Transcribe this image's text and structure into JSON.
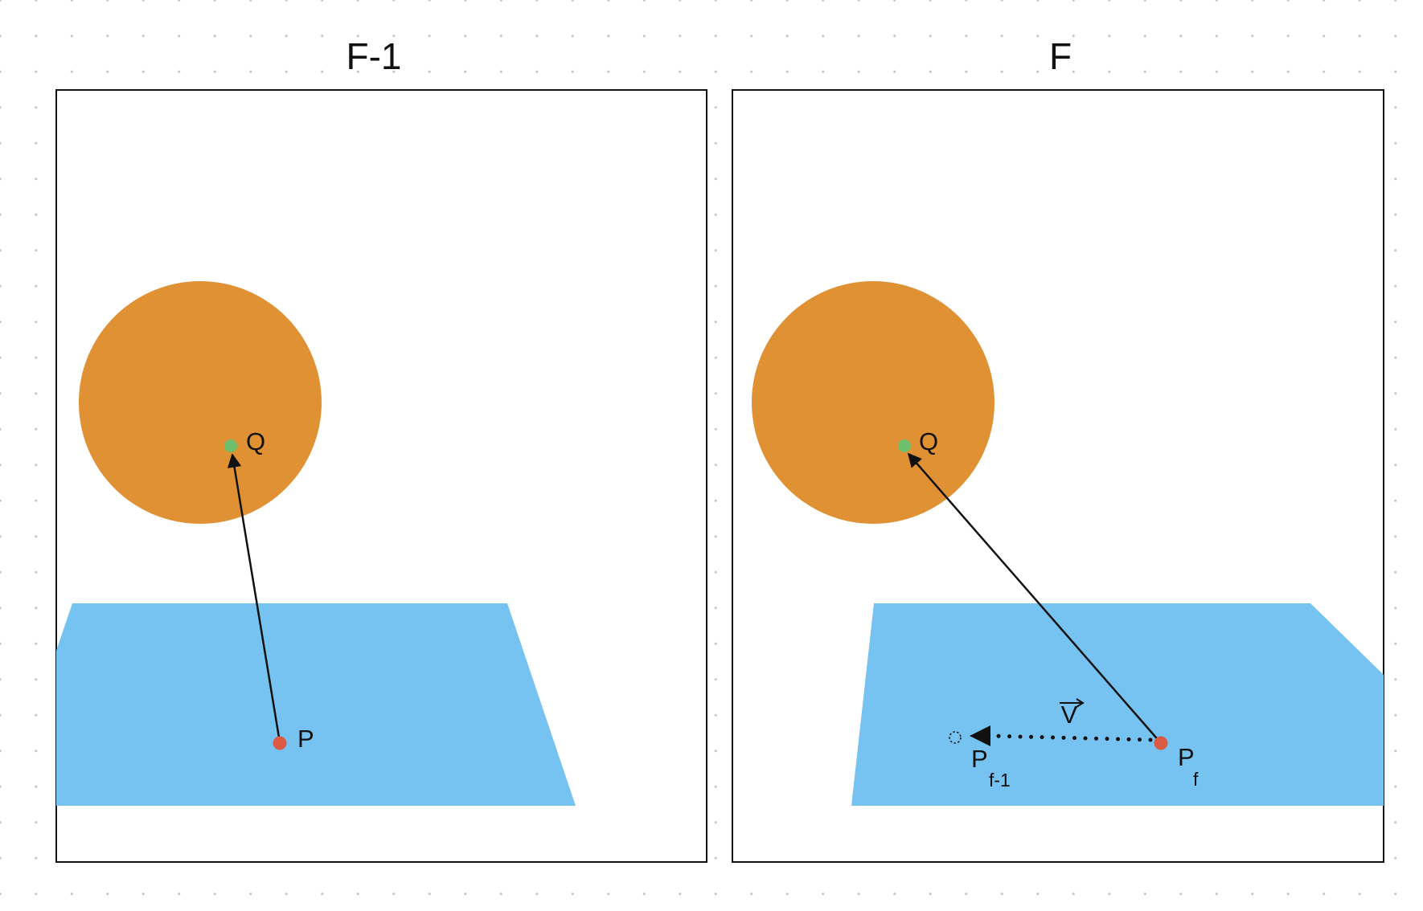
{
  "colors": {
    "background": "#ffffff",
    "grid_dot": "#c6c6c6",
    "frame_border": "#111111",
    "sphere": "#E09133",
    "plane": "#76C2F0",
    "point_p": "#DA5A44",
    "point_q": "#6DBE6D",
    "arrow": "#111111"
  },
  "panels": [
    {
      "title": "F-1",
      "point_q_label": "Q",
      "point_p_label": "P"
    },
    {
      "title": "F",
      "point_q_label": "Q",
      "point_pf_label": "P",
      "point_pf_sub": "f",
      "point_pprev_label": "P",
      "point_pprev_sub": "f-1",
      "velocity_label": "V"
    }
  ]
}
